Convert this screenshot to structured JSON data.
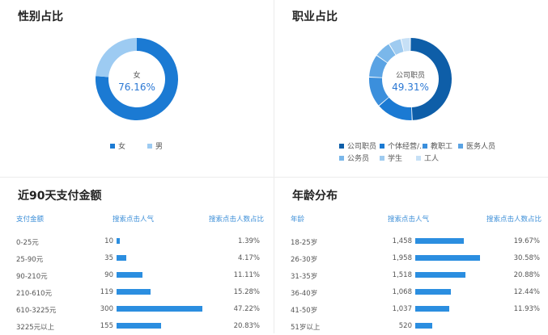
{
  "gender": {
    "title": "性别占比",
    "center_category": "女",
    "center_value": "76.16%",
    "legend": [
      {
        "name": "女",
        "color": "#1b7ad3"
      },
      {
        "name": "男",
        "color": "#9dcbf2"
      }
    ]
  },
  "job": {
    "title": "职业占比",
    "center_category": "公司职员",
    "center_value": "49.31%",
    "legend": [
      {
        "name": "公司职员",
        "color": "#0e5ea8"
      },
      {
        "name": "个体经营/...",
        "color": "#1b7ad3"
      },
      {
        "name": "教职工",
        "color": "#3b8fdc"
      },
      {
        "name": "医务人员",
        "color": "#5aa3e4"
      },
      {
        "name": "公务员",
        "color": "#7ab7ea"
      },
      {
        "name": "学生",
        "color": "#9fcbf0"
      },
      {
        "name": "工人",
        "color": "#c6e0f6"
      }
    ]
  },
  "pay": {
    "title": "近90天支付金额",
    "col_label": "支付金额",
    "col_count": "搜索点击人气",
    "col_pct": "搜索点击人数占比",
    "rows": [
      {
        "label": "0-25元",
        "count": "10",
        "pct": "1.39%"
      },
      {
        "label": "25-90元",
        "count": "35",
        "pct": "4.17%"
      },
      {
        "label": "90-210元",
        "count": "90",
        "pct": "11.11%"
      },
      {
        "label": "210-610元",
        "count": "119",
        "pct": "15.28%"
      },
      {
        "label": "610-3225元",
        "count": "300",
        "pct": "47.22%"
      },
      {
        "label": "3225元以上",
        "count": "155",
        "pct": "20.83%"
      }
    ]
  },
  "age": {
    "title": "年龄分布",
    "col_label": "年龄",
    "col_count": "搜索点击人气",
    "col_pct": "搜索点击人数占比",
    "rows": [
      {
        "label": "18-25岁",
        "count": "1,458",
        "pct": "19.67%"
      },
      {
        "label": "26-30岁",
        "count": "1,958",
        "pct": "30.58%"
      },
      {
        "label": "31-35岁",
        "count": "1,518",
        "pct": "20.88%"
      },
      {
        "label": "36-40岁",
        "count": "1,068",
        "pct": "12.44%"
      },
      {
        "label": "41-50岁",
        "count": "1,037",
        "pct": "11.93%"
      },
      {
        "label": "51岁以上",
        "count": "520",
        "pct": ""
      }
    ]
  },
  "chart_data": [
    {
      "type": "pie",
      "title": "性别占比",
      "categories": [
        "女",
        "男"
      ],
      "values": [
        76.16,
        23.84
      ],
      "legend": "bottom"
    },
    {
      "type": "pie",
      "title": "职业占比",
      "categories": [
        "公司职员",
        "个体经营/...",
        "教职工",
        "医务人员",
        "公务员",
        "学生",
        "工人"
      ],
      "values": [
        49.31,
        14.5,
        12.0,
        9.0,
        6.5,
        5.0,
        3.69
      ],
      "legend": "bottom"
    },
    {
      "type": "bar",
      "title": "近90天支付金额",
      "categories": [
        "0-25元",
        "25-90元",
        "90-210元",
        "210-610元",
        "610-3225元",
        "3225元以上"
      ],
      "values": [
        10,
        35,
        90,
        119,
        300,
        155
      ],
      "percentages": [
        1.39,
        4.17,
        11.11,
        15.28,
        47.22,
        20.83
      ],
      "orientation": "horizontal",
      "xlim": [
        0,
        300
      ]
    },
    {
      "type": "bar",
      "title": "年龄分布",
      "categories": [
        "18-25岁",
        "26-30岁",
        "31-35岁",
        "36-40岁",
        "41-50岁",
        "51岁以上"
      ],
      "values": [
        1458,
        1958,
        1518,
        1068,
        1037,
        520
      ],
      "percentages": [
        19.67,
        30.58,
        20.88,
        12.44,
        11.93,
        null
      ],
      "orientation": "horizontal",
      "xlim": [
        0,
        1958
      ]
    }
  ]
}
